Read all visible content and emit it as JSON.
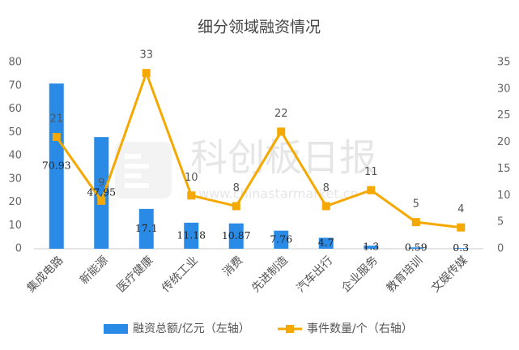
{
  "chart_data": {
    "type": "bar-line",
    "title": "细分领域融资情况",
    "categories": [
      "集成电路",
      "新能源",
      "医疗健康",
      "传统工业",
      "消费",
      "先进制造",
      "汽车出行",
      "企业服务",
      "教育培训",
      "文娱传媒"
    ],
    "series": [
      {
        "name": "融资总额/亿元（左轴）",
        "type": "bar",
        "color": "#2a8be6",
        "values": [
          70.93,
          47.95,
          17.1,
          11.18,
          10.87,
          7.76,
          4.7,
          1.3,
          0.59,
          0.3
        ]
      },
      {
        "name": "事件数量/个（右轴）",
        "type": "line",
        "axis": "y2",
        "color": "#f5a800",
        "values": [
          21,
          9,
          33,
          10,
          8,
          22,
          8,
          11,
          5,
          4
        ]
      }
    ],
    "ylim": [
      0,
      80
    ],
    "yticks": [
      0,
      10,
      20,
      30,
      40,
      50,
      60,
      70,
      80
    ],
    "y2lim": [
      0,
      35
    ],
    "y2ticks": [
      0,
      5,
      10,
      15,
      20,
      25,
      30,
      35
    ],
    "legend": "bottom",
    "watermark": {
      "text": "科创板日报",
      "url": "www.chinastarmarket.cn"
    }
  }
}
